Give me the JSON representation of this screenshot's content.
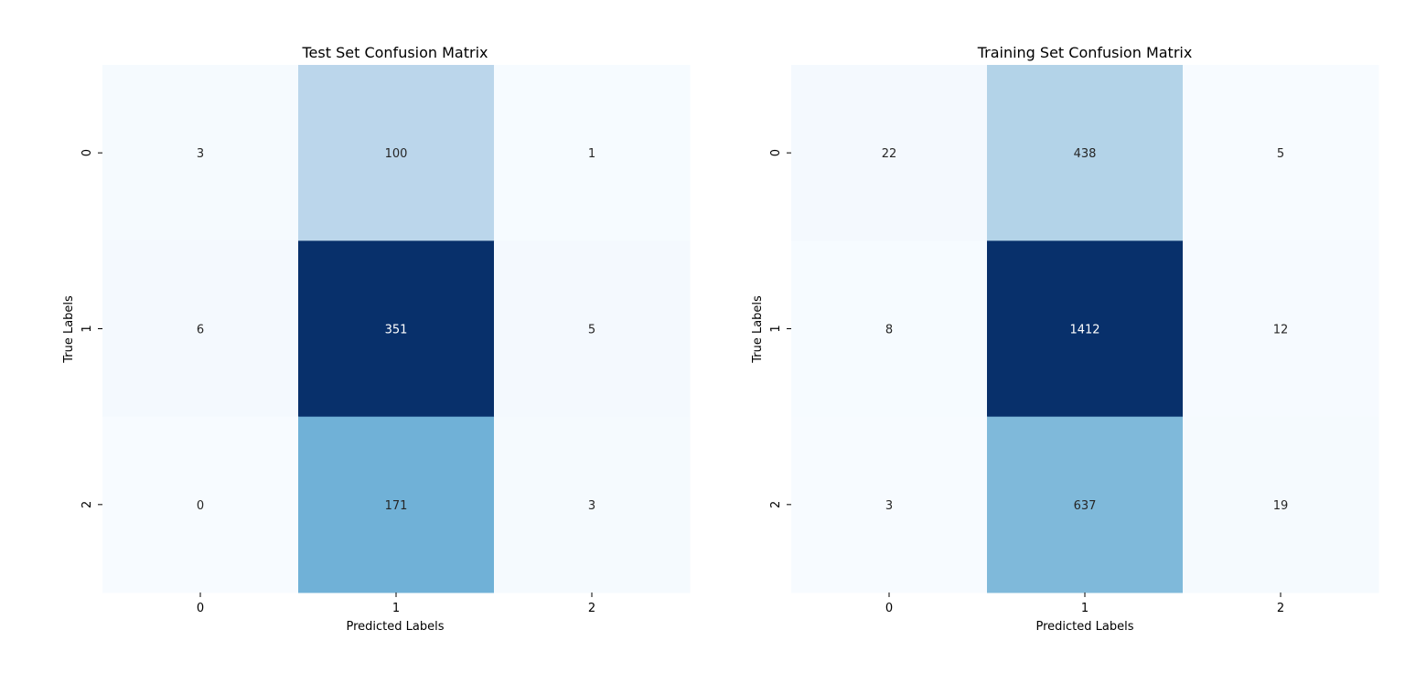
{
  "chart_data": [
    {
      "type": "heatmap",
      "title": "Test Set Confusion Matrix",
      "xlabel": "Predicted Labels",
      "ylabel": "True Labels",
      "x_ticks": [
        "0",
        "1",
        "2"
      ],
      "y_ticks": [
        "0",
        "1",
        "2"
      ],
      "colormap": "Blues",
      "values": [
        [
          3,
          100,
          1
        ],
        [
          6,
          351,
          5
        ],
        [
          0,
          171,
          3
        ]
      ]
    },
    {
      "type": "heatmap",
      "title": "Training Set Confusion Matrix",
      "xlabel": "Predicted Labels",
      "ylabel": "True Labels",
      "x_ticks": [
        "0",
        "1",
        "2"
      ],
      "y_ticks": [
        "0",
        "1",
        "2"
      ],
      "colormap": "Blues",
      "values": [
        [
          22,
          438,
          5
        ],
        [
          8,
          1412,
          12
        ],
        [
          3,
          637,
          19
        ]
      ]
    }
  ]
}
